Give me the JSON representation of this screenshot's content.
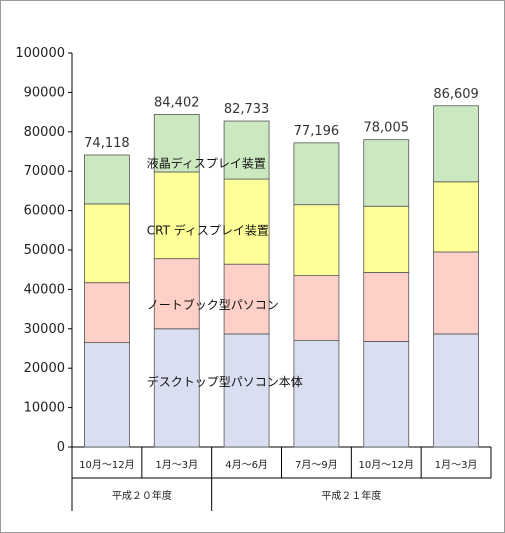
{
  "chart_data": {
    "type": "bar",
    "stacked": true,
    "categories": [
      "10月～12月",
      "1月～3月",
      "4月～6月",
      "7月～9月",
      "10月～12月",
      "1月～3月"
    ],
    "groups": [
      {
        "label": "平成２０年度",
        "span": 2
      },
      {
        "label": "平成２１年度",
        "span": 4
      }
    ],
    "series": [
      {
        "name": "デスクトップ型パソコン本体",
        "color": "#d9dff0",
        "values": [
          26500,
          30000,
          28700,
          27000,
          26800,
          28700
        ]
      },
      {
        "name": "ノートブック型パソコン",
        "color": "#ffd0c8",
        "values": [
          15200,
          17800,
          17700,
          16500,
          17500,
          20800
        ]
      },
      {
        "name": "CRT ディスプレイ装置",
        "color": "#ffff99",
        "values": [
          20000,
          22000,
          21600,
          18000,
          16800,
          17800
        ]
      },
      {
        "name": "液晶ディスプレイ装置",
        "color": "#cce8c0",
        "values": [
          12418,
          14602,
          14733,
          15696,
          16905,
          19309
        ]
      }
    ],
    "totals": [
      "74,118",
      "84,402",
      "82,733",
      "77,196",
      "78,005",
      "86,609"
    ],
    "ylim": [
      0,
      100000
    ],
    "yticks": [
      0,
      10000,
      20000,
      30000,
      40000,
      50000,
      60000,
      70000,
      80000,
      90000,
      100000
    ],
    "grid": false,
    "legend": "inline"
  }
}
